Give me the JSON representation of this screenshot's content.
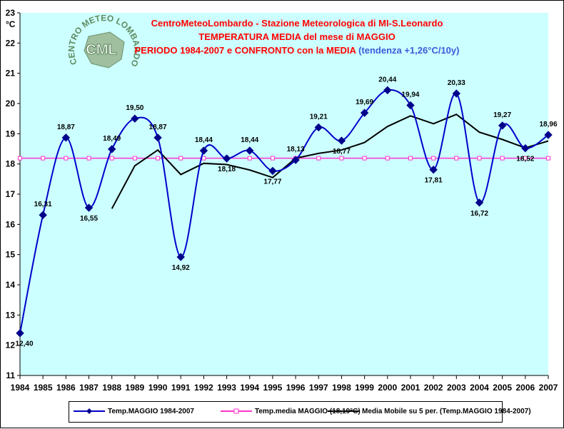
{
  "chart_data": {
    "type": "line",
    "title_lines": [
      "CentroMeteoLombardo - Stazione Meteorologica di MI-S.Leonardo",
      "TEMPERATURA MEDIA del mese di MAGGIO",
      "PERIODO 1984-2007 e CONFRONTO con la MEDIA"
    ],
    "trend_note": "(tendenza +1,26°C/10y)",
    "y_unit": "°C",
    "ylim": [
      11,
      23
    ],
    "yticks": [
      11,
      12,
      13,
      14,
      15,
      16,
      17,
      18,
      19,
      20,
      21,
      22,
      23
    ],
    "categories": [
      "1984",
      "1985",
      "1986",
      "1987",
      "1988",
      "1989",
      "1990",
      "1991",
      "1992",
      "1993",
      "1994",
      "1995",
      "1996",
      "1997",
      "1998",
      "1999",
      "2000",
      "2001",
      "2002",
      "2003",
      "2004",
      "2005",
      "2006",
      "2007"
    ],
    "series": [
      {
        "name": "Temp.MAGGIO 1984-2007",
        "color": "#0000cc",
        "values": [
          12.4,
          16.31,
          18.87,
          16.55,
          18.49,
          19.5,
          18.87,
          14.92,
          18.44,
          18.18,
          18.44,
          17.77,
          18.13,
          19.21,
          18.77,
          19.69,
          20.44,
          19.94,
          17.81,
          20.33,
          16.72,
          19.27,
          18.52,
          18.96
        ],
        "labels": [
          "12,40",
          "16,31",
          "18,87",
          "16,55",
          "18,49",
          "19,50",
          "18,87",
          "14,92",
          "18,44",
          "18,18",
          "18,44",
          "17,77",
          "18,13",
          "19,21",
          "18,77",
          "19,69",
          "20,44",
          "19,94",
          "17,81",
          "20,33",
          "16,72",
          "19,27",
          "18,52",
          "18,96"
        ]
      },
      {
        "name": "Temp.media MAGGIO (18,19°C)",
        "color": "#ff33cc",
        "values": [
          18.19,
          18.19,
          18.19,
          18.19,
          18.19,
          18.19,
          18.19,
          18.19,
          18.19,
          18.19,
          18.19,
          18.19,
          18.19,
          18.19,
          18.19,
          18.19,
          18.19,
          18.19,
          18.19,
          18.19,
          18.19,
          18.19,
          18.19,
          18.19
        ]
      },
      {
        "name": "Media Mobile su 5 per. (Temp.MAGGIO 1984-2007)",
        "color": "#000000",
        "values": [
          null,
          null,
          null,
          null,
          16.52,
          17.94,
          18.46,
          17.65,
          18.02,
          17.98,
          17.8,
          17.55,
          18.19,
          18.35,
          18.46,
          18.71,
          19.24,
          19.59,
          19.33,
          19.64,
          19.05,
          18.81,
          18.53,
          18.76
        ]
      }
    ],
    "grid": false,
    "legend": "bottom",
    "plot_bg": "#ccffff"
  },
  "logo": {
    "text": "CML",
    "arc_text": "CENTRO METEO LOMBARDO"
  }
}
